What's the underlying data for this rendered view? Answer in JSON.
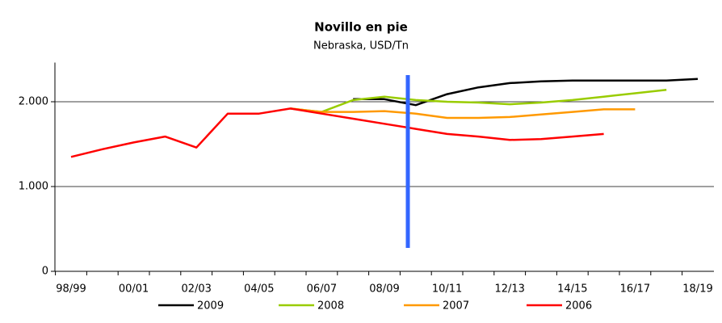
{
  "chart_data": {
    "type": "line",
    "title": "Novillo en pie",
    "subtitle": "Nebraska, USD/Tn",
    "categories": [
      "98/99",
      null,
      "00/01",
      null,
      "02/03",
      null,
      "04/05",
      null,
      "06/07",
      null,
      "08/09",
      null,
      "10/11",
      null,
      "12/13",
      null,
      "14/15",
      null,
      "16/17",
      null,
      "18/19"
    ],
    "series": [
      {
        "name": "2009",
        "color": "#000000",
        "values": [
          null,
          null,
          null,
          null,
          null,
          null,
          null,
          null,
          null,
          2030,
          2030,
          1960,
          2090,
          2170,
          2220,
          2240,
          2250,
          2250,
          2250,
          2250,
          2270
        ]
      },
      {
        "name": "2008",
        "color": "#99cc00",
        "values": [
          null,
          null,
          null,
          null,
          null,
          null,
          null,
          1920,
          1880,
          2020,
          2060,
          2020,
          2000,
          1990,
          1970,
          1990,
          2020,
          2060,
          2100,
          2140,
          null
        ]
      },
      {
        "name": "2007",
        "color": "#ff9900",
        "values": [
          null,
          null,
          null,
          null,
          null,
          null,
          null,
          1920,
          1880,
          1880,
          1890,
          1860,
          1810,
          1810,
          1820,
          1850,
          1880,
          1910,
          1910,
          null,
          null
        ]
      },
      {
        "name": "2006",
        "color": "#ff0000",
        "values": [
          1350,
          1440,
          1520,
          1590,
          1460,
          1860,
          1860,
          1920,
          1860,
          1800,
          1740,
          1680,
          1620,
          1590,
          1550,
          1560,
          1590,
          1620,
          null,
          null,
          null
        ]
      }
    ],
    "ylim": [
      0,
      2500
    ],
    "yticks": [
      0,
      {
        "value": 1000,
        "label": "1.000"
      },
      {
        "value": 2000,
        "label": "2.000"
      }
    ],
    "grid": true,
    "legend": "bottom"
  }
}
